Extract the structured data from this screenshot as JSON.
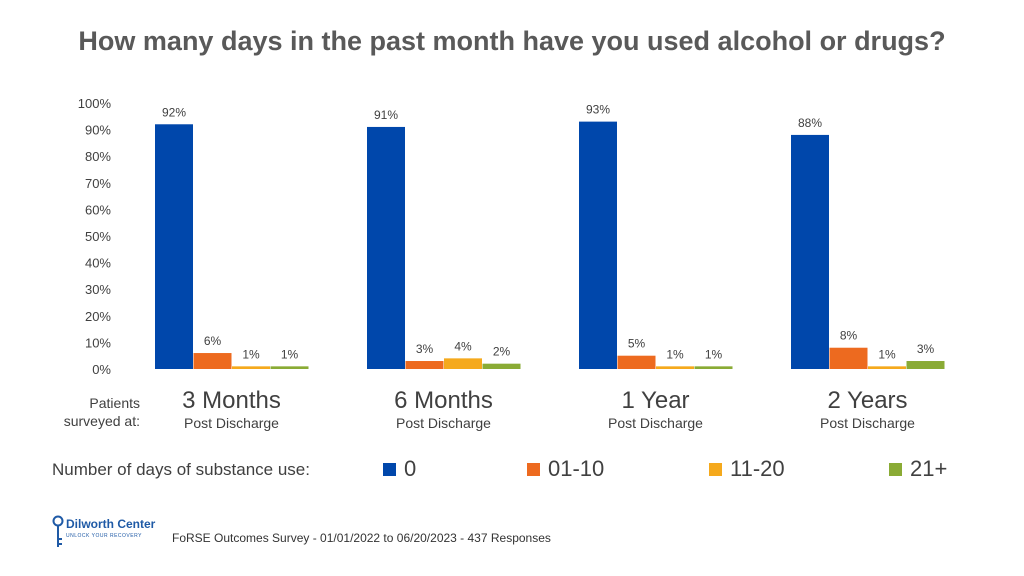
{
  "title": "How many days in the past month have you used alcohol or drugs?",
  "group_axis_label": [
    "Patients",
    "surveyed at:"
  ],
  "group_sublabel": "Post Discharge",
  "legend": {
    "title": "Number of days of substance use:",
    "items": [
      "0",
      "01-10",
      "11-20",
      "21+"
    ]
  },
  "footer": "FoRSE Outcomes Survey - 01/01/2022 to 06/20/2023 - 437 Responses",
  "logo": {
    "name": "Dilworth Center",
    "tagline": "UNLOCK YOUR RECOVERY",
    "icon": "key-icon"
  },
  "colors": {
    "0": "#0047ab",
    "01-10": "#ed6a1f",
    "11-20": "#f5a91c",
    "21+": "#8aab35"
  },
  "chart_data": {
    "type": "bar",
    "title": "How many days in the past month have you used alcohol or drugs?",
    "categories": [
      "3 Months",
      "6 Months",
      "1 Year",
      "2 Years"
    ],
    "series": [
      {
        "name": "0",
        "values": [
          92,
          91,
          93,
          88
        ],
        "color": "#0047ab"
      },
      {
        "name": "01-10",
        "values": [
          6,
          3,
          5,
          8
        ],
        "color": "#ed6a1f"
      },
      {
        "name": "11-20",
        "values": [
          1,
          4,
          1,
          1
        ],
        "color": "#f5a91c"
      },
      {
        "name": "21+",
        "values": [
          1,
          2,
          1,
          3
        ],
        "color": "#8aab35"
      }
    ],
    "data_labels": [
      [
        "92%",
        "6%",
        "1%",
        "1%"
      ],
      [
        "91%",
        "3%",
        "4%",
        "2%"
      ],
      [
        "93%",
        "5%",
        "1%",
        "1%"
      ],
      [
        "88%",
        "8%",
        "1%",
        "3%"
      ]
    ],
    "yticks": [
      "0%",
      "10%",
      "20%",
      "30%",
      "40%",
      "50%",
      "60%",
      "70%",
      "80%",
      "90%",
      "100%"
    ],
    "ylim": [
      0,
      100
    ],
    "grid": false,
    "legend_position": "bottom"
  }
}
